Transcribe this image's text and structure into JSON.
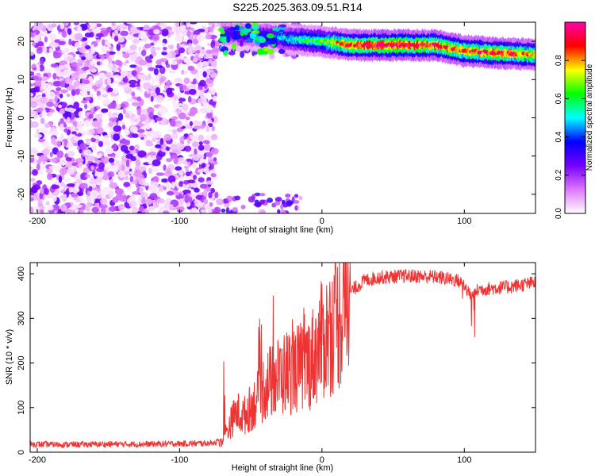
{
  "title": "S225.2025.363.09.51.R14",
  "chart_data": [
    {
      "type": "heatmap",
      "xlabel": "Height of straight line (km)",
      "ylabel": "Frequency (Hz)",
      "xlim": [
        -205,
        150
      ],
      "ylim": [
        -25,
        25
      ],
      "xticks": [
        -200,
        -100,
        0,
        100
      ],
      "yticks": [
        -20,
        -10,
        0,
        10,
        20
      ],
      "colorbar": {
        "label": "Normalized spectral amplitude",
        "range": [
          0,
          1
        ],
        "ticks": [
          0.0,
          0.2,
          0.4,
          0.6,
          0.8
        ],
        "colormap": [
          "#ffffff",
          "#dd77ff",
          "#7700ff",
          "#0000ff",
          "#00ffff",
          "#00ff00",
          "#ffff00",
          "#ff0000",
          "#ff00aa"
        ]
      },
      "noise_region_x": [
        -205,
        -75
      ],
      "signal_ridge": [
        {
          "x": -70,
          "freq": 22.0,
          "amp": 0.3
        },
        {
          "x": -40,
          "freq": 21.5,
          "amp": 0.35
        },
        {
          "x": -20,
          "freq": 20.5,
          "amp": 0.5
        },
        {
          "x": 0,
          "freq": 20.0,
          "amp": 0.6
        },
        {
          "x": 20,
          "freq": 19.0,
          "amp": 0.85
        },
        {
          "x": 50,
          "freq": 19.0,
          "amp": 0.9
        },
        {
          "x": 80,
          "freq": 19.0,
          "amp": 0.85
        },
        {
          "x": 100,
          "freq": 17.5,
          "amp": 0.8
        },
        {
          "x": 120,
          "freq": 17.0,
          "amp": 0.85
        },
        {
          "x": 150,
          "freq": 16.5,
          "amp": 0.75
        }
      ]
    },
    {
      "type": "line",
      "xlabel": "Height of straight line (km)",
      "ylabel": "SNR (10 * v/v)",
      "xlim": [
        -205,
        150
      ],
      "ylim": [
        0,
        425
      ],
      "xticks": [
        -200,
        -100,
        0,
        100
      ],
      "yticks": [
        0,
        100,
        200,
        300,
        400
      ],
      "color": "#ee3333",
      "series": [
        {
          "x": [
            -205,
            -180,
            -150,
            -120,
            -100,
            -80,
            -70,
            -65,
            -60,
            -55,
            -50,
            -45,
            -40,
            -35,
            -30,
            -25,
            -20,
            -15,
            -10,
            -5,
            0,
            5,
            10,
            15,
            20,
            30,
            40,
            60,
            80,
            95,
            100,
            105,
            110,
            130,
            150
          ],
          "y": [
            18,
            17,
            18,
            18,
            19,
            20,
            25,
            60,
            90,
            80,
            100,
            120,
            150,
            160,
            170,
            180,
            185,
            190,
            200,
            220,
            250,
            270,
            290,
            320,
            360,
            385,
            392,
            395,
            393,
            385,
            375,
            350,
            365,
            370,
            380
          ]
        }
      ]
    }
  ]
}
